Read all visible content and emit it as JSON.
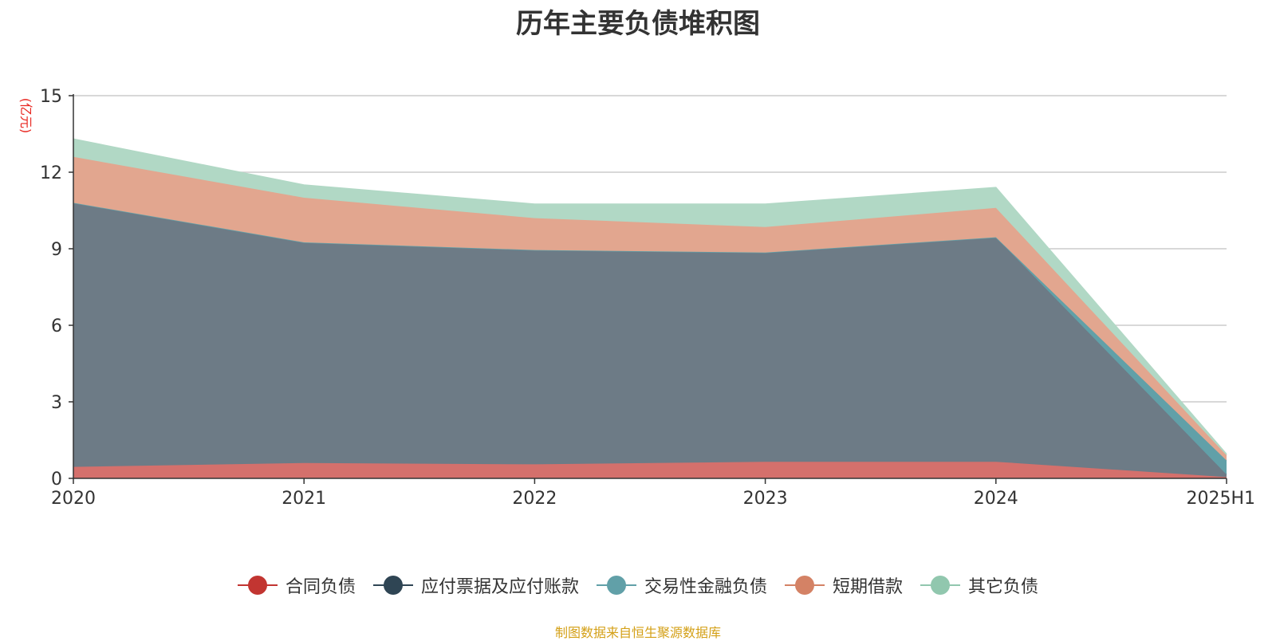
{
  "chart_data": {
    "type": "area",
    "stacked": true,
    "title": "历年主要负债堆积图",
    "unit_label": "(亿元)",
    "categories": [
      "2020",
      "2021",
      "2022",
      "2023",
      "2024",
      "2025H1"
    ],
    "ylim": [
      0,
      15
    ],
    "yticks": [
      "0",
      "3",
      "6",
      "9",
      "12",
      "15"
    ],
    "grid": true,
    "legend_position": "bottom",
    "series": [
      {
        "name": "合同负债",
        "color": "#c23531",
        "fill": "#d4706c",
        "values": [
          0.45,
          0.6,
          0.55,
          0.65,
          0.65,
          0.05
        ]
      },
      {
        "name": "应付票据及应付账款",
        "color": "#2f4554",
        "fill": "#6d7b86",
        "values": [
          10.35,
          8.65,
          8.4,
          8.2,
          8.8,
          0.1
        ]
      },
      {
        "name": "交易性金融负债",
        "color": "#61a0a8",
        "fill": "#61a0a8",
        "values": [
          0,
          0,
          0,
          0,
          0,
          0.55
        ]
      },
      {
        "name": "短期借款",
        "color": "#d48265",
        "fill": "#e2a68f",
        "values": [
          1.8,
          1.75,
          1.25,
          1.0,
          1.15,
          0.2
        ]
      },
      {
        "name": "其它负债",
        "color": "#91c7ae",
        "fill": "#b1d8c5",
        "values": [
          0.7,
          0.5,
          0.55,
          0.9,
          0.8,
          0.05
        ]
      }
    ]
  },
  "source_note": "制图数据来自恒生聚源数据库"
}
